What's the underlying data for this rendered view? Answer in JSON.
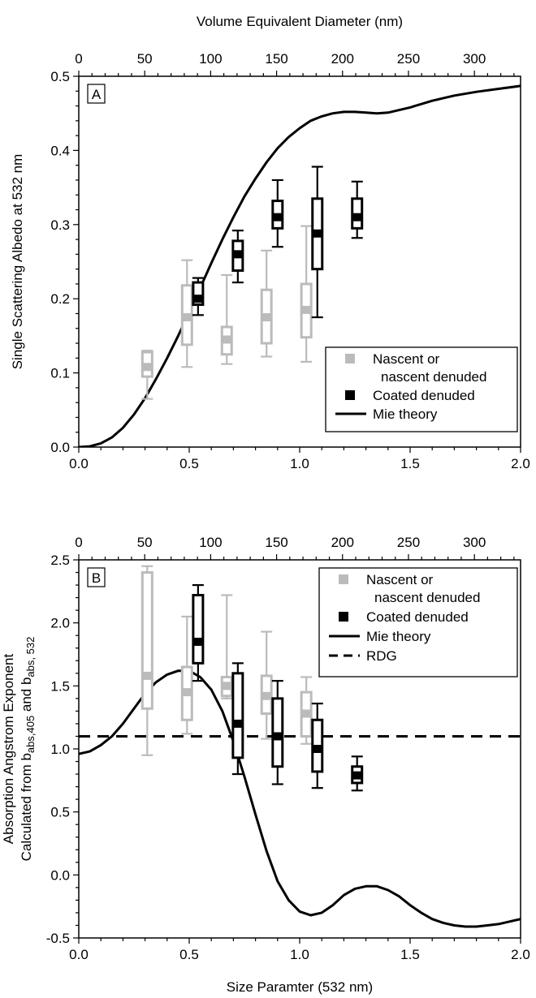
{
  "chart_data": [
    {
      "type": "box",
      "panel_label": "A",
      "top_xlabel": "Volume Equivalent Diameter (nm)",
      "xlabel": "",
      "ylabel": "Single Scattering Albedo at 532 nm",
      "xlim": [
        0.0,
        2.0
      ],
      "ylim": [
        0.0,
        0.5
      ],
      "xticks": [
        "0.0",
        "0.5",
        "1.0",
        "1.5",
        "2.0"
      ],
      "yticks": [
        "0.0",
        "0.1",
        "0.2",
        "0.3",
        "0.4",
        "0.5"
      ],
      "top_xticks": [
        "0",
        "50",
        "100",
        "150",
        "200",
        "250",
        "300"
      ],
      "top_xtick_values": [
        0,
        50,
        100,
        150,
        200,
        250,
        300
      ],
      "top_xlim": [
        0,
        335
      ],
      "legend": {
        "position": "bottom-right",
        "entries": [
          {
            "label_line1": "Nascent or",
            "label_line2": "nascent denuded",
            "color": "#bbbbbb",
            "kind": "square"
          },
          {
            "label_line1": "Coated denuded",
            "label_line2": "",
            "color": "#000000",
            "kind": "square"
          },
          {
            "label_line1": "Mie theory",
            "label_line2": "",
            "color": "#000000",
            "kind": "solid"
          }
        ]
      },
      "series": [
        {
          "name": "Nascent or nascent denuded",
          "color": "#bbbbbb",
          "boxes": [
            {
              "x": 0.31,
              "whisker_low": 0.065,
              "q1": 0.095,
              "median": 0.108,
              "q3": 0.128,
              "whisker_high": 0.13
            },
            {
              "x": 0.49,
              "whisker_low": 0.108,
              "q1": 0.138,
              "median": 0.175,
              "q3": 0.218,
              "whisker_high": 0.252
            },
            {
              "x": 0.67,
              "whisker_low": 0.112,
              "q1": 0.125,
              "median": 0.145,
              "q3": 0.162,
              "whisker_high": 0.232
            },
            {
              "x": 0.85,
              "whisker_low": 0.122,
              "q1": 0.14,
              "median": 0.175,
              "q3": 0.212,
              "whisker_high": 0.265
            },
            {
              "x": 1.03,
              "whisker_low": 0.115,
              "q1": 0.148,
              "median": 0.185,
              "q3": 0.22,
              "whisker_high": 0.298
            }
          ]
        },
        {
          "name": "Coated denuded",
          "color": "#000000",
          "boxes": [
            {
              "x": 0.54,
              "whisker_low": 0.178,
              "q1": 0.192,
              "median": 0.2,
              "q3": 0.222,
              "whisker_high": 0.228
            },
            {
              "x": 0.72,
              "whisker_low": 0.222,
              "q1": 0.238,
              "median": 0.26,
              "q3": 0.278,
              "whisker_high": 0.292
            },
            {
              "x": 0.9,
              "whisker_low": 0.27,
              "q1": 0.295,
              "median": 0.31,
              "q3": 0.332,
              "whisker_high": 0.36
            },
            {
              "x": 1.08,
              "whisker_low": 0.175,
              "q1": 0.24,
              "median": 0.288,
              "q3": 0.335,
              "whisker_high": 0.378
            },
            {
              "x": 1.26,
              "whisker_low": 0.282,
              "q1": 0.295,
              "median": 0.31,
              "q3": 0.335,
              "whisker_high": 0.358
            }
          ]
        }
      ],
      "lines": [
        {
          "name": "Mie theory",
          "style": "solid",
          "color": "#000000",
          "x": [
            0.0,
            0.05,
            0.1,
            0.15,
            0.2,
            0.25,
            0.3,
            0.35,
            0.4,
            0.45,
            0.5,
            0.55,
            0.6,
            0.65,
            0.7,
            0.75,
            0.8,
            0.85,
            0.9,
            0.95,
            1.0,
            1.05,
            1.1,
            1.15,
            1.2,
            1.25,
            1.3,
            1.35,
            1.4,
            1.5,
            1.6,
            1.7,
            1.8,
            1.9,
            2.0
          ],
          "y": [
            0.0,
            0.001,
            0.005,
            0.013,
            0.026,
            0.044,
            0.066,
            0.092,
            0.12,
            0.15,
            0.182,
            0.215,
            0.248,
            0.28,
            0.31,
            0.338,
            0.362,
            0.384,
            0.403,
            0.418,
            0.43,
            0.44,
            0.446,
            0.45,
            0.452,
            0.452,
            0.451,
            0.45,
            0.451,
            0.458,
            0.467,
            0.474,
            0.479,
            0.483,
            0.487
          ]
        }
      ]
    },
    {
      "type": "box",
      "panel_label": "B",
      "top_xlabel": "",
      "xlabel": "Size Paramter (532 nm)",
      "ylabel_line1": "Absorption Angstrom Exponent",
      "ylabel_line2_prefix": "Calculated from b",
      "ylabel_sub1": "abs,405",
      "ylabel_mid": " and b",
      "ylabel_sub2": "abs, 532",
      "xlim": [
        0.0,
        2.0
      ],
      "ylim": [
        -0.5,
        2.5
      ],
      "xticks": [
        "0.0",
        "0.5",
        "1.0",
        "1.5",
        "2.0"
      ],
      "yticks": [
        "-0.5",
        "0.0",
        "0.5",
        "1.0",
        "1.5",
        "2.0",
        "2.5"
      ],
      "top_xticks": [
        "0",
        "50",
        "100",
        "150",
        "200",
        "250",
        "300"
      ],
      "top_xtick_values": [
        0,
        50,
        100,
        150,
        200,
        250,
        300
      ],
      "top_xlim": [
        0,
        335
      ],
      "legend": {
        "position": "top-right",
        "entries": [
          {
            "label_line1": "Nascent or",
            "label_line2": "nascent denuded",
            "color": "#bbbbbb",
            "kind": "square"
          },
          {
            "label_line1": "Coated denuded",
            "label_line2": "",
            "color": "#000000",
            "kind": "square"
          },
          {
            "label_line1": "Mie theory",
            "label_line2": "",
            "color": "#000000",
            "kind": "solid"
          },
          {
            "label_line1": "RDG",
            "label_line2": "",
            "color": "#000000",
            "kind": "dashed"
          }
        ]
      },
      "series": [
        {
          "name": "Nascent or nascent denuded",
          "color": "#bbbbbb",
          "boxes": [
            {
              "x": 0.31,
              "whisker_low": 0.95,
              "q1": 1.32,
              "median": 1.58,
              "q3": 2.4,
              "whisker_high": 2.45
            },
            {
              "x": 0.49,
              "whisker_low": 1.12,
              "q1": 1.23,
              "median": 1.45,
              "q3": 1.65,
              "whisker_high": 2.05
            },
            {
              "x": 0.67,
              "whisker_low": 1.4,
              "q1": 1.42,
              "median": 1.5,
              "q3": 1.57,
              "whisker_high": 2.22
            },
            {
              "x": 0.85,
              "whisker_low": 1.08,
              "q1": 1.28,
              "median": 1.42,
              "q3": 1.58,
              "whisker_high": 1.93
            },
            {
              "x": 1.03,
              "whisker_low": 1.04,
              "q1": 1.1,
              "median": 1.28,
              "q3": 1.45,
              "whisker_high": 1.57
            }
          ]
        },
        {
          "name": "Coated denuded",
          "color": "#000000",
          "boxes": [
            {
              "x": 0.54,
              "whisker_low": 1.54,
              "q1": 1.68,
              "median": 1.85,
              "q3": 2.22,
              "whisker_high": 2.3
            },
            {
              "x": 0.72,
              "whisker_low": 0.8,
              "q1": 0.93,
              "median": 1.2,
              "q3": 1.6,
              "whisker_high": 1.68
            },
            {
              "x": 0.9,
              "whisker_low": 0.72,
              "q1": 0.86,
              "median": 1.1,
              "q3": 1.4,
              "whisker_high": 1.54
            },
            {
              "x": 1.08,
              "whisker_low": 0.69,
              "q1": 0.82,
              "median": 1.0,
              "q3": 1.23,
              "whisker_high": 1.36
            },
            {
              "x": 1.26,
              "whisker_low": 0.67,
              "q1": 0.73,
              "median": 0.79,
              "q3": 0.86,
              "whisker_high": 0.94
            }
          ]
        }
      ],
      "lines": [
        {
          "name": "Mie theory",
          "style": "solid",
          "color": "#000000",
          "x": [
            0.0,
            0.05,
            0.1,
            0.15,
            0.2,
            0.25,
            0.3,
            0.35,
            0.4,
            0.45,
            0.5,
            0.55,
            0.6,
            0.65,
            0.7,
            0.75,
            0.8,
            0.85,
            0.9,
            0.95,
            1.0,
            1.05,
            1.1,
            1.15,
            1.2,
            1.25,
            1.3,
            1.35,
            1.4,
            1.45,
            1.5,
            1.55,
            1.6,
            1.65,
            1.7,
            1.75,
            1.8,
            1.85,
            1.9,
            1.95,
            2.0
          ],
          "y": [
            0.96,
            0.98,
            1.03,
            1.1,
            1.2,
            1.32,
            1.44,
            1.53,
            1.59,
            1.62,
            1.62,
            1.57,
            1.47,
            1.3,
            1.06,
            0.78,
            0.48,
            0.19,
            -0.05,
            -0.2,
            -0.29,
            -0.32,
            -0.3,
            -0.24,
            -0.16,
            -0.11,
            -0.09,
            -0.09,
            -0.12,
            -0.17,
            -0.24,
            -0.3,
            -0.35,
            -0.38,
            -0.4,
            -0.41,
            -0.41,
            -0.4,
            -0.39,
            -0.37,
            -0.35
          ]
        },
        {
          "name": "RDG",
          "style": "dashed",
          "color": "#000000",
          "x": [
            0.0,
            2.0
          ],
          "y": [
            1.1,
            1.1
          ]
        }
      ]
    }
  ]
}
